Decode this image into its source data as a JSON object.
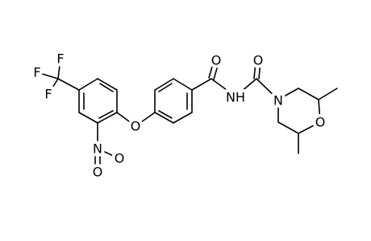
{
  "labels": [
    "F",
    "F",
    "F",
    "O",
    "N",
    "O",
    "O",
    "O",
    "NH",
    "O",
    "N",
    "O"
  ]
}
